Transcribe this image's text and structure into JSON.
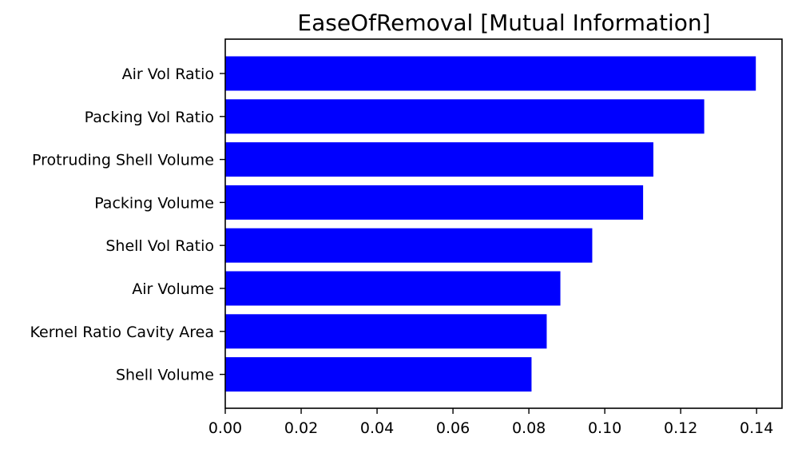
{
  "chart_data": {
    "type": "bar",
    "orientation": "horizontal",
    "title": "EaseOfRemoval [Mutual Information]",
    "xlabel": "",
    "ylabel": "",
    "categories": [
      "Air Vol Ratio",
      "Packing Vol Ratio",
      "Protruding Shell Volume",
      "Packing Volume",
      "Shell Vol Ratio",
      "Air Volume",
      "Kernel Ratio Cavity Area",
      "Shell Volume"
    ],
    "values": [
      0.1398,
      0.1262,
      0.1128,
      0.1101,
      0.0967,
      0.0883,
      0.0847,
      0.0807
    ],
    "xlim": [
      0,
      0.1467
    ],
    "xticks": [
      0.0,
      0.02,
      0.04,
      0.06,
      0.08,
      0.1,
      0.12,
      0.14
    ],
    "xtick_labels": [
      "0.00",
      "0.02",
      "0.04",
      "0.06",
      "0.08",
      "0.10",
      "0.12",
      "0.14"
    ],
    "bar_color": "#0000ff",
    "grid": false,
    "legend": "none"
  }
}
